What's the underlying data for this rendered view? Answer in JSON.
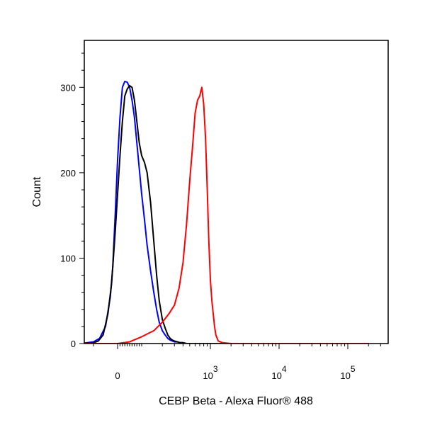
{
  "chart_data": {
    "type": "line",
    "xlabel": "CEBP Beta - Alexa Fluor® 488",
    "ylabel": "Count",
    "x_scale": "biexponential",
    "xlim": [
      -300,
      200000
    ],
    "ylim": [
      0,
      355
    ],
    "y_ticks": [
      {
        "value": 0,
        "label": "0"
      },
      {
        "value": 100,
        "label": "100"
      },
      {
        "value": 200,
        "label": "200"
      },
      {
        "value": 300,
        "label": "300"
      }
    ],
    "x_ticks": [
      {
        "value": 0,
        "base": "0",
        "exp": ""
      },
      {
        "value": 1000,
        "base": "10",
        "exp": "3"
      },
      {
        "value": 10000,
        "base": "10",
        "exp": "4"
      },
      {
        "value": 100000,
        "base": "10",
        "exp": "5"
      }
    ],
    "series": [
      {
        "color": "#0000ff",
        "x": [
          -300,
          -150,
          -100,
          -75,
          -50,
          -30,
          -20,
          -10,
          0,
          10,
          20,
          30,
          40,
          50,
          60,
          70,
          80,
          90,
          100,
          110,
          120,
          135,
          150,
          165,
          180,
          200,
          220,
          240,
          260,
          280,
          300,
          330,
          360,
          400,
          450,
          500,
          600,
          800,
          1000,
          10000,
          100000,
          200000
        ],
        "y": [
          0,
          0,
          2,
          6,
          20,
          55,
          90,
          150,
          215,
          265,
          300,
          307,
          306,
          300,
          285,
          265,
          235,
          205,
          175,
          145,
          115,
          85,
          60,
          40,
          25,
          15,
          10,
          6,
          4,
          3,
          2,
          2,
          1,
          1,
          0,
          0,
          0,
          0,
          0,
          0,
          0,
          0
        ]
      },
      {
        "color": "#000000",
        "x": [
          -300,
          -150,
          -100,
          -80,
          -60,
          -40,
          -25,
          -10,
          0,
          10,
          20,
          30,
          40,
          50,
          60,
          70,
          80,
          90,
          100,
          110,
          120,
          135,
          150,
          165,
          180,
          200,
          220,
          240,
          260,
          280,
          300,
          330,
          360,
          400,
          450,
          500,
          600,
          800,
          1000,
          10000,
          100000,
          200000
        ],
        "y": [
          0,
          0,
          1,
          3,
          10,
          35,
          70,
          130,
          175,
          220,
          260,
          290,
          298,
          302,
          300,
          285,
          260,
          235,
          220,
          212,
          200,
          165,
          120,
          80,
          50,
          28,
          18,
          10,
          6,
          4,
          3,
          2,
          1,
          1,
          0,
          0,
          0,
          0,
          0,
          0,
          0,
          0
        ]
      },
      {
        "color": "#ff0000",
        "x": [
          -300,
          -50,
          0,
          50,
          100,
          150,
          200,
          250,
          300,
          350,
          400,
          450,
          500,
          550,
          600,
          650,
          700,
          750,
          800,
          850,
          900,
          950,
          1000,
          1050,
          1100,
          1150,
          1200,
          1300,
          1500,
          2000,
          10000,
          100000,
          200000
        ],
        "y": [
          0,
          0,
          0,
          2,
          8,
          15,
          25,
          35,
          45,
          65,
          95,
          140,
          190,
          230,
          270,
          285,
          290,
          300,
          280,
          240,
          180,
          120,
          75,
          50,
          35,
          20,
          10,
          3,
          1,
          0,
          0,
          0,
          0
        ]
      }
    ]
  }
}
